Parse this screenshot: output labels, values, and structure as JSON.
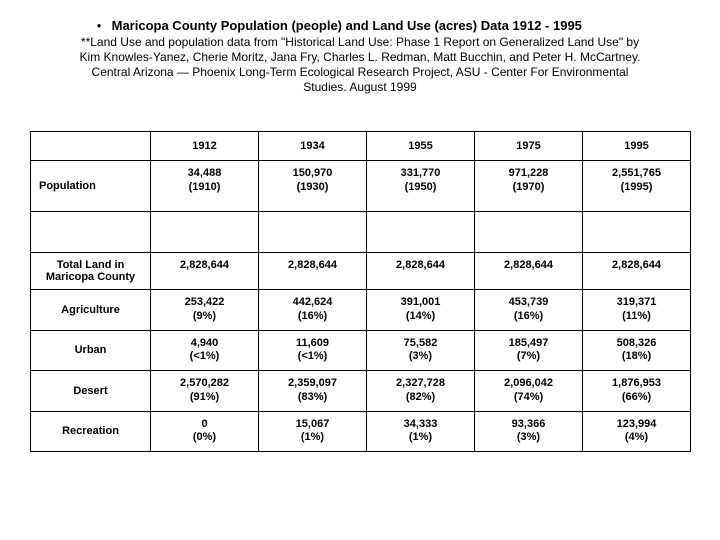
{
  "title": "Maricopa County Population (people) and Land Use (acres) Data 1912 - 1995",
  "citation": "**Land Use and population data from \"Historical Land Use: Phase 1 Report on Generalized Land Use\" by Kim Knowles-Yanez, Cherie Moritz, Jana Fry, Charles L. Redman, Matt Bucchin, and Peter H. McCartney. Central Arizona — Phoenix Long-Term Ecological Research Project, ASU - Center For Environmental Studies. August 1999",
  "years": [
    "1912",
    "1934",
    "1955",
    "1975",
    "1995"
  ],
  "rows": {
    "population": {
      "label": "Population",
      "values": [
        "34,488",
        "150,970",
        "331,770",
        "971,228",
        "2,551,765"
      ],
      "sub": [
        "(1910)",
        "(1930)",
        "(1950)",
        "(1970)",
        "(1995)"
      ]
    },
    "total_land": {
      "label": "Total Land in Maricopa County",
      "values": [
        "2,828,644",
        "2,828,644",
        "2,828,644",
        "2,828,644",
        "2,828,644"
      ]
    },
    "agriculture": {
      "label": "Agriculture",
      "values": [
        "253,422",
        "442,624",
        "391,001",
        "453,739",
        "319,371"
      ],
      "sub": [
        "(9%)",
        "(16%)",
        "(14%)",
        "(16%)",
        "(11%)"
      ]
    },
    "urban": {
      "label": "Urban",
      "values": [
        "4,940",
        "11,609",
        "75,582",
        "185,497",
        "508,326"
      ],
      "sub": [
        "(<1%)",
        "(<1%)",
        "(3%)",
        "(7%)",
        "(18%)"
      ]
    },
    "desert": {
      "label": "Desert",
      "values": [
        "2,570,282",
        "2,359,097",
        "2,327,728",
        "2,096,042",
        "1,876,953"
      ],
      "sub": [
        "(91%)",
        "(83%)",
        "(82%)",
        "(74%)",
        "(66%)"
      ]
    },
    "recreation": {
      "label": "Recreation",
      "values": [
        "0",
        "15,067",
        "34,333",
        "93,366",
        "123,994"
      ],
      "sub": [
        "(0%)",
        "(1%)",
        "(1%)",
        "(3%)",
        "(4%)"
      ]
    }
  }
}
